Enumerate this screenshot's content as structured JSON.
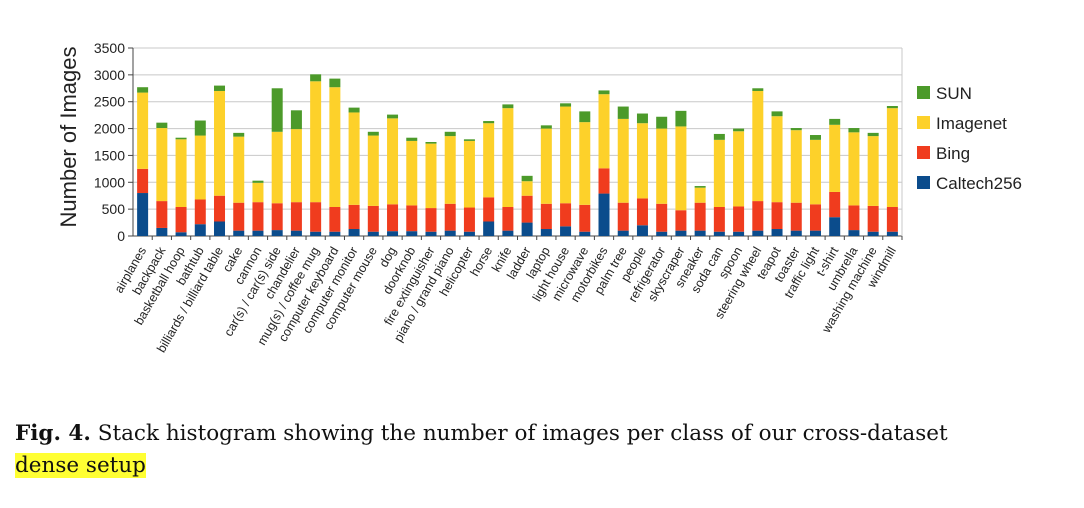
{
  "chart_data": {
    "type": "bar",
    "stacked": true,
    "ylabel": "Number of Images",
    "xlabel": "",
    "ylim": [
      0,
      3500
    ],
    "yticks": [
      0,
      500,
      1000,
      1500,
      2000,
      2500,
      3000,
      3500
    ],
    "grid": true,
    "legend_position": "right",
    "categories": [
      "airplanes",
      "backpack",
      "basketball hoop",
      "bathtub",
      "billiards / billiard table",
      "cake",
      "cannon",
      "car(s) / car(s) side",
      "chandelier",
      "mug(s) / coffee mug",
      "computer keyboard",
      "computer monitor",
      "computer mouse",
      "dog",
      "doorknob",
      "fire extinguisher",
      "piano / grand piano",
      "helicopter",
      "horse",
      "knife",
      "ladder",
      "laptop",
      "light house",
      "microwave",
      "motorbikes",
      "palm tree",
      "people",
      "refrigerator",
      "skyscraper",
      "sneaker",
      "soda can",
      "spoon",
      "steering wheel",
      "teapot",
      "toaster",
      "traffic light",
      "t-shirt",
      "umbrella",
      "washing machine",
      "windmill"
    ],
    "series": [
      {
        "name": "Caltech256",
        "color": "#0b4c8c",
        "values": [
          800,
          150,
          70,
          220,
          270,
          100,
          100,
          110,
          100,
          80,
          80,
          130,
          80,
          90,
          90,
          80,
          100,
          80,
          270,
          100,
          250,
          130,
          180,
          80,
          790,
          100,
          200,
          80,
          100,
          100,
          80,
          80,
          100,
          130,
          100,
          100,
          350,
          110,
          80,
          80
        ]
      },
      {
        "name": "Bing",
        "color": "#f03c1e",
        "values": [
          450,
          500,
          470,
          460,
          480,
          520,
          530,
          500,
          530,
          550,
          460,
          450,
          480,
          500,
          480,
          440,
          500,
          450,
          450,
          440,
          500,
          470,
          430,
          500,
          470,
          520,
          500,
          520,
          380,
          520,
          460,
          470,
          550,
          500,
          520,
          490,
          470,
          460,
          480,
          460
        ]
      },
      {
        "name": "Imagenet",
        "color": "#fdd12a",
        "values": [
          1420,
          1360,
          1260,
          1190,
          1950,
          1230,
          360,
          1330,
          1360,
          2250,
          2230,
          1720,
          1310,
          1600,
          1200,
          1200,
          1260,
          1240,
          1380,
          1840,
          270,
          1400,
          1800,
          1540,
          1380,
          1560,
          1400,
          1400,
          1560,
          280,
          1250,
          1400,
          2050,
          1600,
          1350,
          1200,
          1250,
          1360,
          1300,
          1840
        ]
      },
      {
        "name": "SUN",
        "color": "#4c9a2a",
        "values": [
          100,
          100,
          30,
          280,
          100,
          70,
          40,
          810,
          350,
          130,
          160,
          90,
          70,
          70,
          60,
          30,
          80,
          30,
          40,
          70,
          100,
          60,
          60,
          200,
          70,
          230,
          180,
          220,
          290,
          30,
          110,
          50,
          50,
          90,
          40,
          90,
          110,
          80,
          60,
          40
        ]
      }
    ]
  },
  "caption": {
    "label": "Fig. 4.",
    "text": "Stack histogram showing the number of images per class of our cross-dataset",
    "highlighted": "dense setup"
  }
}
